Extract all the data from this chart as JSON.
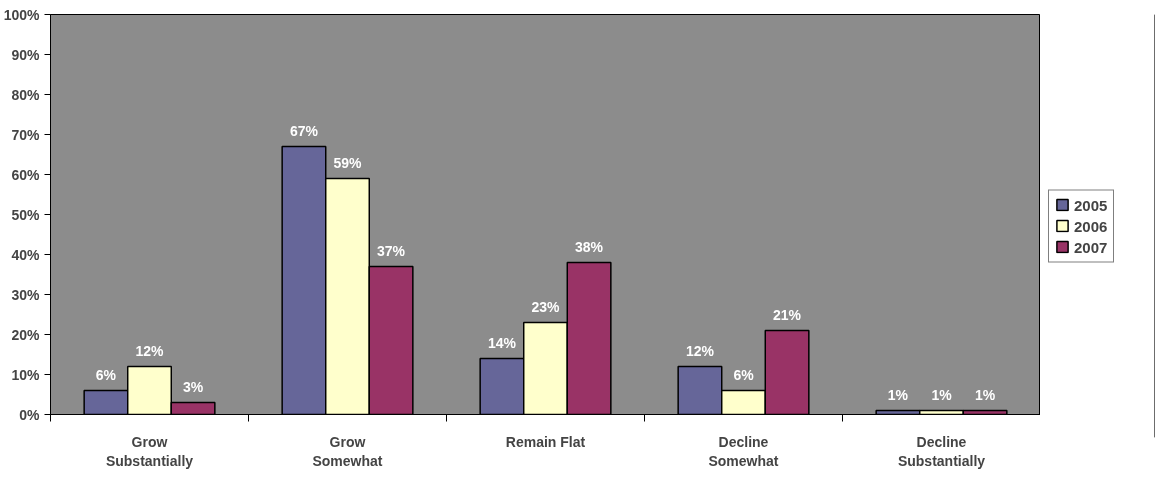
{
  "chart_data": {
    "type": "bar",
    "categories": [
      "Grow Substantially",
      "Grow Somewhat",
      "Remain Flat",
      "Decline Somewhat",
      "Decline Substantially"
    ],
    "series": [
      {
        "name": "2005",
        "color": "#666699",
        "values": [
          6,
          67,
          14,
          12,
          1
        ],
        "value_labels": [
          "6%",
          "67%",
          "14%",
          "12%",
          "1%"
        ]
      },
      {
        "name": "2006",
        "color": "#ffffcc",
        "values": [
          12,
          59,
          23,
          6,
          1
        ],
        "value_labels": [
          "12%",
          "59%",
          "23%",
          "6%",
          "1%"
        ]
      },
      {
        "name": "2007",
        "color": "#993366",
        "values": [
          3,
          37,
          38,
          21,
          1
        ],
        "value_labels": [
          "3%",
          "37%",
          "38%",
          "21%",
          "1%"
        ]
      }
    ],
    "ylim": [
      0,
      100
    ],
    "yticks": [
      {
        "value": 0,
        "label": "0%"
      },
      {
        "value": 10,
        "label": "10%"
      },
      {
        "value": 20,
        "label": "20%"
      },
      {
        "value": 30,
        "label": "30%"
      },
      {
        "value": 40,
        "label": "40%"
      },
      {
        "value": 50,
        "label": "50%"
      },
      {
        "value": 60,
        "label": "60%"
      },
      {
        "value": 70,
        "label": "70%"
      },
      {
        "value": 80,
        "label": "80%"
      },
      {
        "value": 90,
        "label": "90%"
      },
      {
        "value": 100,
        "label": "100%"
      }
    ],
    "grid": false,
    "legend": "right"
  }
}
